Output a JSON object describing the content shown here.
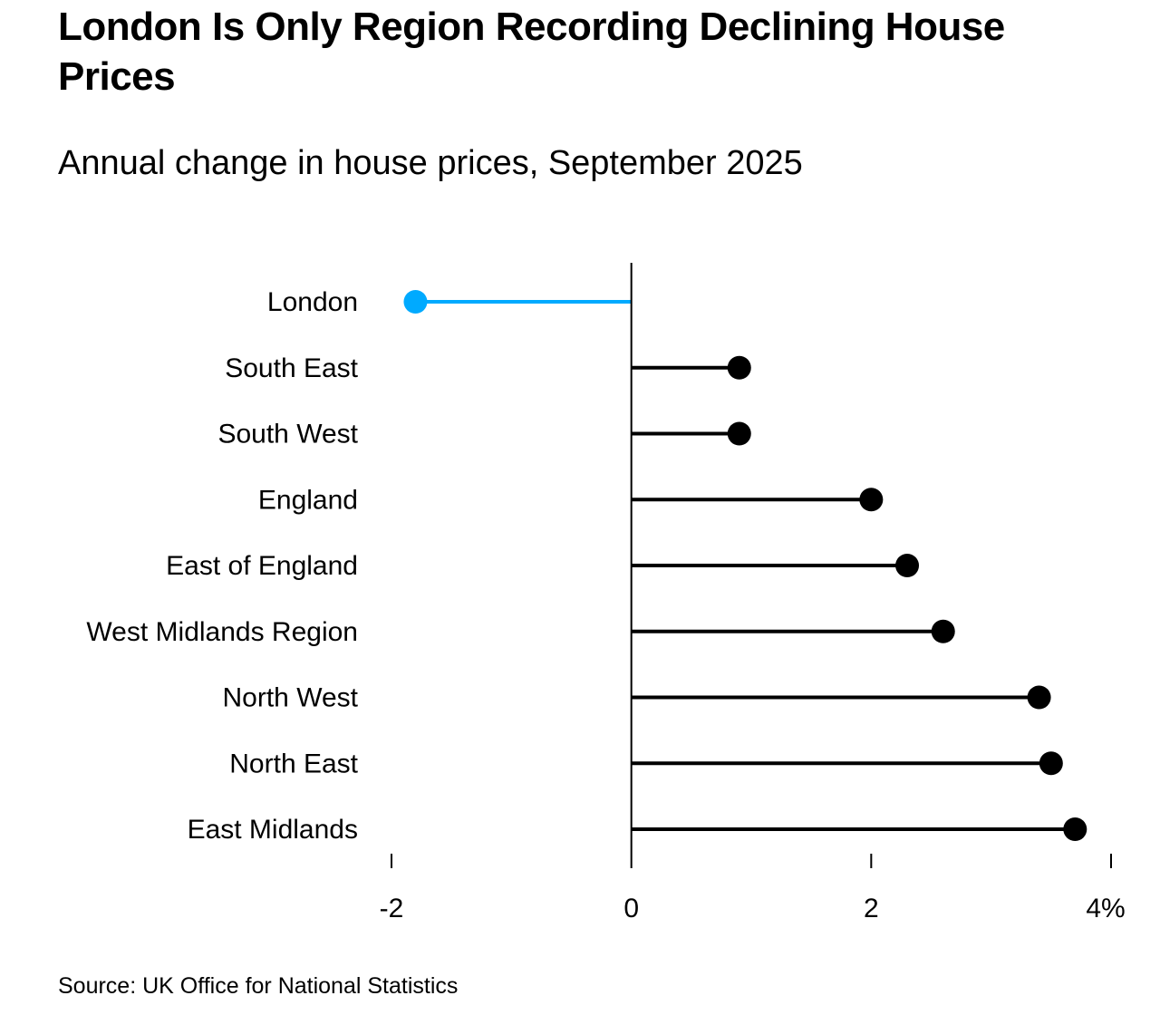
{
  "header": {
    "title": "London Is Only Region Recording Declining House Prices",
    "subtitle": "Annual change in house prices, September 2025"
  },
  "footer": {
    "source": "Source: UK Office for National Statistics"
  },
  "colors": {
    "highlight": "#00aaff",
    "default": "#000000",
    "axis": "#000000"
  },
  "chart_data": {
    "type": "lollipop",
    "title": "London Is Only Region Recording Declining House Prices",
    "subtitle": "Annual change in house prices, September 2025",
    "xlabel": "",
    "ylabel": "",
    "x_unit": "%",
    "xlim": [
      -2,
      4
    ],
    "x_ticks": [
      -2,
      0,
      2,
      4
    ],
    "x_tick_labels": [
      "-2",
      "0",
      "2",
      "4%"
    ],
    "grid": false,
    "legend": "none",
    "categories": [
      "London",
      "South East",
      "South West",
      "England",
      "East of England",
      "West Midlands Region",
      "North West",
      "North East",
      "East Midlands"
    ],
    "values": [
      -1.8,
      0.9,
      0.9,
      2.0,
      2.3,
      2.6,
      3.4,
      3.5,
      3.7
    ],
    "highlighted": [
      "London"
    ],
    "source": "Source: UK Office for National Statistics"
  }
}
